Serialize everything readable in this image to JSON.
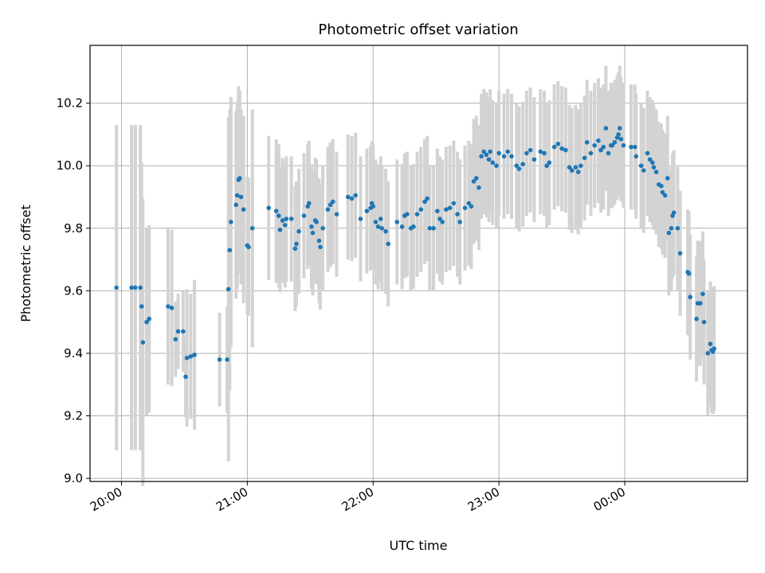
{
  "chart_data": {
    "type": "scatter",
    "title": "Photometric offset variation",
    "xlabel": "UTC time",
    "ylabel": "Photometric offset",
    "x_axis_kind": "time",
    "x_range_hours": [
      19.75,
      24.975
    ],
    "x_ticks": [
      {
        "h": 20,
        "label": "20:00"
      },
      {
        "h": 21,
        "label": "21:00"
      },
      {
        "h": 22,
        "label": "22:00"
      },
      {
        "h": 23,
        "label": "23:00"
      },
      {
        "h": 24,
        "label": "00:00"
      }
    ],
    "ylim": [
      8.99,
      10.385
    ],
    "y_ticks": [
      9.0,
      9.2,
      9.4,
      9.6,
      9.8,
      10.0,
      10.2
    ],
    "y_tick_labels": [
      "9.0",
      "9.2",
      "9.4",
      "9.6",
      "9.8",
      "10.0",
      "10.2"
    ],
    "grid": true,
    "colors": {
      "points": "#1f77b4",
      "errorbars": "#d3d3d3",
      "grid": "#b0b0b0"
    },
    "series": [
      {
        "points": [
          [
            19.96,
            9.61,
            0.52
          ],
          [
            20.08,
            9.61,
            0.52
          ],
          [
            20.11,
            9.61,
            0.52
          ],
          [
            20.15,
            9.61,
            0.52
          ],
          [
            20.16,
            9.55,
            0.46
          ],
          [
            20.17,
            9.435,
            0.46
          ],
          [
            20.2,
            9.5,
            0.3
          ],
          [
            20.22,
            9.51,
            0.3
          ],
          [
            20.37,
            9.55,
            0.25
          ],
          [
            20.4,
            9.545,
            0.25
          ],
          [
            20.43,
            9.445,
            0.12
          ],
          [
            20.45,
            9.47,
            0.12
          ],
          [
            20.49,
            9.47,
            0.13
          ],
          [
            20.51,
            9.325,
            0.13
          ],
          [
            20.52,
            9.385,
            0.22
          ],
          [
            20.55,
            9.39,
            0.2
          ],
          [
            20.58,
            9.395,
            0.24
          ],
          [
            20.78,
            9.38,
            0.15
          ],
          [
            20.84,
            9.38,
            0.17
          ],
          [
            20.85,
            9.605,
            0.55
          ],
          [
            20.86,
            9.73,
            0.45
          ],
          [
            20.87,
            9.82,
            0.4
          ],
          [
            20.91,
            9.875,
            0.3
          ],
          [
            20.92,
            9.905,
            0.3
          ],
          [
            20.93,
            9.955,
            0.3
          ],
          [
            20.94,
            9.96,
            0.28
          ],
          [
            20.95,
            9.9,
            0.28
          ],
          [
            20.97,
            9.86,
            0.3
          ],
          [
            21.0,
            9.745,
            0.22
          ],
          [
            21.01,
            9.74,
            0.22
          ],
          [
            21.04,
            9.8,
            0.38
          ],
          [
            21.17,
            9.865,
            0.23
          ],
          [
            21.23,
            9.855,
            0.23
          ],
          [
            21.25,
            9.84,
            0.23
          ],
          [
            21.26,
            9.795,
            0.2
          ],
          [
            21.28,
            9.825,
            0.2
          ],
          [
            21.3,
            9.81,
            0.2
          ],
          [
            21.31,
            9.83,
            0.2
          ],
          [
            21.35,
            9.83,
            0.2
          ],
          [
            21.38,
            9.735,
            0.2
          ],
          [
            21.39,
            9.75,
            0.2
          ],
          [
            21.41,
            9.79,
            0.2
          ],
          [
            21.45,
            9.84,
            0.2
          ],
          [
            21.48,
            9.87,
            0.2
          ],
          [
            21.49,
            9.88,
            0.2
          ],
          [
            21.51,
            9.805,
            0.2
          ],
          [
            21.52,
            9.785,
            0.2
          ],
          [
            21.54,
            9.825,
            0.2
          ],
          [
            21.55,
            9.82,
            0.2
          ],
          [
            21.57,
            9.76,
            0.2
          ],
          [
            21.58,
            9.74,
            0.2
          ],
          [
            21.6,
            9.8,
            0.2
          ],
          [
            21.64,
            9.86,
            0.2
          ],
          [
            21.66,
            9.875,
            0.2
          ],
          [
            21.68,
            9.885,
            0.2
          ],
          [
            21.71,
            9.845,
            0.2
          ],
          [
            21.8,
            9.9,
            0.2
          ],
          [
            21.83,
            9.895,
            0.2
          ],
          [
            21.86,
            9.905,
            0.2
          ],
          [
            21.9,
            9.83,
            0.2
          ],
          [
            21.95,
            9.855,
            0.2
          ],
          [
            21.98,
            9.865,
            0.2
          ],
          [
            21.99,
            9.88,
            0.2
          ],
          [
            22.0,
            9.87,
            0.2
          ],
          [
            22.02,
            9.82,
            0.2
          ],
          [
            22.04,
            9.805,
            0.2
          ],
          [
            22.06,
            9.83,
            0.2
          ],
          [
            22.07,
            9.8,
            0.2
          ],
          [
            22.1,
            9.79,
            0.2
          ],
          [
            22.12,
            9.75,
            0.2
          ],
          [
            22.19,
            9.82,
            0.2
          ],
          [
            22.23,
            9.805,
            0.2
          ],
          [
            22.25,
            9.84,
            0.2
          ],
          [
            22.27,
            9.845,
            0.2
          ],
          [
            22.3,
            9.8,
            0.2
          ],
          [
            22.32,
            9.805,
            0.2
          ],
          [
            22.35,
            9.845,
            0.2
          ],
          [
            22.38,
            9.86,
            0.2
          ],
          [
            22.41,
            9.885,
            0.2
          ],
          [
            22.43,
            9.895,
            0.2
          ],
          [
            22.45,
            9.8,
            0.2
          ],
          [
            22.48,
            9.8,
            0.2
          ],
          [
            22.51,
            9.855,
            0.2
          ],
          [
            22.53,
            9.83,
            0.2
          ],
          [
            22.55,
            9.82,
            0.2
          ],
          [
            22.58,
            9.86,
            0.2
          ],
          [
            22.61,
            9.865,
            0.2
          ],
          [
            22.64,
            9.88,
            0.2
          ],
          [
            22.67,
            9.845,
            0.2
          ],
          [
            22.69,
            9.82,
            0.2
          ],
          [
            22.73,
            9.865,
            0.2
          ],
          [
            22.76,
            9.88,
            0.2
          ],
          [
            22.78,
            9.87,
            0.2
          ],
          [
            22.8,
            9.95,
            0.2
          ],
          [
            22.82,
            9.96,
            0.2
          ],
          [
            22.84,
            9.93,
            0.2
          ],
          [
            22.86,
            10.03,
            0.2
          ],
          [
            22.88,
            10.045,
            0.2
          ],
          [
            22.9,
            10.035,
            0.2
          ],
          [
            22.92,
            10.02,
            0.2
          ],
          [
            22.93,
            10.045,
            0.2
          ],
          [
            22.95,
            10.01,
            0.2
          ],
          [
            22.98,
            10.0,
            0.2
          ],
          [
            23.0,
            10.04,
            0.2
          ],
          [
            23.04,
            10.03,
            0.2
          ],
          [
            23.07,
            10.045,
            0.2
          ],
          [
            23.1,
            10.03,
            0.2
          ],
          [
            23.14,
            10.0,
            0.2
          ],
          [
            23.16,
            9.99,
            0.2
          ],
          [
            23.19,
            10.005,
            0.2
          ],
          [
            23.22,
            10.04,
            0.2
          ],
          [
            23.25,
            10.05,
            0.2
          ],
          [
            23.28,
            10.02,
            0.2
          ],
          [
            23.33,
            10.045,
            0.2
          ],
          [
            23.36,
            10.04,
            0.2
          ],
          [
            23.38,
            10.0,
            0.2
          ],
          [
            23.4,
            10.01,
            0.2
          ],
          [
            23.44,
            10.06,
            0.2
          ],
          [
            23.47,
            10.07,
            0.2
          ],
          [
            23.5,
            10.055,
            0.2
          ],
          [
            23.53,
            10.05,
            0.2
          ],
          [
            23.56,
            9.995,
            0.2
          ],
          [
            23.58,
            9.985,
            0.2
          ],
          [
            23.61,
            9.995,
            0.2
          ],
          [
            23.63,
            9.98,
            0.2
          ],
          [
            23.65,
            10.0,
            0.2
          ],
          [
            23.68,
            10.025,
            0.2
          ],
          [
            23.7,
            10.075,
            0.2
          ],
          [
            23.73,
            10.04,
            0.2
          ],
          [
            23.76,
            10.065,
            0.2
          ],
          [
            23.79,
            10.08,
            0.2
          ],
          [
            23.81,
            10.05,
            0.2
          ],
          [
            23.83,
            10.06,
            0.2
          ],
          [
            23.85,
            10.12,
            0.2
          ],
          [
            23.87,
            10.04,
            0.2
          ],
          [
            23.89,
            10.065,
            0.2
          ],
          [
            23.9,
            10.065,
            0.2
          ],
          [
            23.92,
            10.075,
            0.2
          ],
          [
            23.94,
            10.09,
            0.2
          ],
          [
            23.95,
            10.1,
            0.2
          ],
          [
            23.96,
            10.12,
            0.2
          ],
          [
            23.97,
            10.085,
            0.2
          ],
          [
            23.99,
            10.065,
            0.2
          ],
          [
            24.05,
            10.06,
            0.2
          ],
          [
            24.08,
            10.06,
            0.2
          ],
          [
            24.09,
            10.03,
            0.2
          ],
          [
            24.13,
            10.0,
            0.2
          ],
          [
            24.15,
            9.985,
            0.2
          ],
          [
            24.18,
            10.04,
            0.2
          ],
          [
            24.2,
            10.02,
            0.2
          ],
          [
            24.22,
            10.01,
            0.2
          ],
          [
            24.23,
            9.995,
            0.2
          ],
          [
            24.25,
            9.98,
            0.2
          ],
          [
            24.27,
            9.94,
            0.2
          ],
          [
            24.29,
            9.935,
            0.2
          ],
          [
            24.3,
            9.915,
            0.2
          ],
          [
            24.32,
            9.905,
            0.2
          ],
          [
            24.34,
            9.96,
            0.2
          ],
          [
            24.35,
            9.785,
            0.2
          ],
          [
            24.37,
            9.8,
            0.2
          ],
          [
            24.38,
            9.84,
            0.2
          ],
          [
            24.39,
            9.85,
            0.2
          ],
          [
            24.42,
            9.8,
            0.2
          ],
          [
            24.44,
            9.72,
            0.2
          ],
          [
            24.5,
            9.66,
            0.2
          ],
          [
            24.51,
            9.655,
            0.2
          ],
          [
            24.52,
            9.58,
            0.2
          ],
          [
            24.57,
            9.51,
            0.2
          ],
          [
            24.58,
            9.56,
            0.2
          ],
          [
            24.6,
            9.56,
            0.2
          ],
          [
            24.62,
            9.59,
            0.2
          ],
          [
            24.63,
            9.5,
            0.2
          ],
          [
            24.66,
            9.4,
            0.2
          ],
          [
            24.68,
            9.43,
            0.2
          ],
          [
            24.69,
            9.41,
            0.2
          ],
          [
            24.7,
            9.405,
            0.2
          ],
          [
            24.71,
            9.415,
            0.2
          ]
        ]
      }
    ]
  }
}
